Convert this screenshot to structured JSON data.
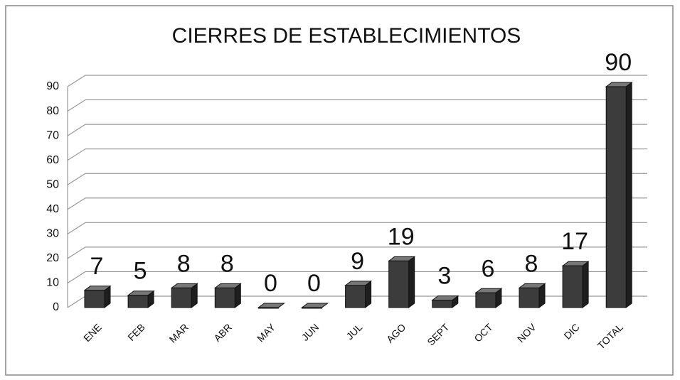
{
  "chart_data": {
    "type": "bar",
    "title": "CIERRES DE ESTABLECIMIENTOS",
    "categories": [
      "ENE",
      "FEB",
      "MAR",
      "ABR",
      "MAY",
      "JUN",
      "JUL",
      "AGO",
      "SEPT",
      "OCT",
      "NOV",
      "DIC",
      "TOTAL"
    ],
    "values": [
      7,
      5,
      8,
      8,
      0,
      0,
      9,
      19,
      3,
      6,
      8,
      17,
      90
    ],
    "color": "#3c3c3c",
    "ylim": [
      0,
      90
    ],
    "yticks": [
      0,
      10,
      20,
      30,
      40,
      50,
      60,
      70,
      80,
      90
    ],
    "grid": true
  }
}
